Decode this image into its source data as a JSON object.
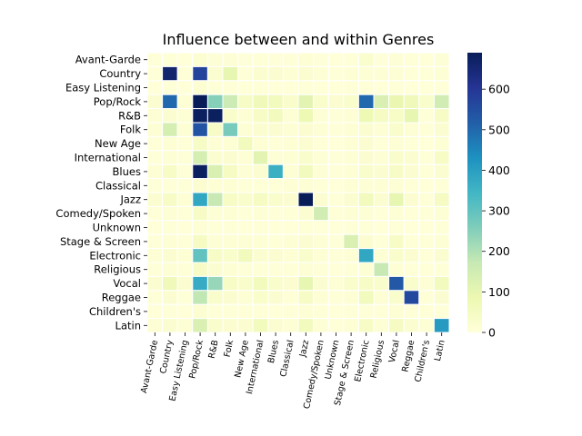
{
  "chart_data": {
    "type": "heatmap",
    "title": "Influence between and within Genres",
    "categories": [
      "Avant-Garde",
      "Country",
      "Easy Listening",
      "Pop/Rock",
      "R&B",
      "Folk",
      "New Age",
      "International",
      "Blues",
      "Classical",
      "Jazz",
      "Comedy/Spoken",
      "Unknown",
      "Stage & Screen",
      "Electronic",
      "Religious",
      "Vocal",
      "Reggae",
      "Children's",
      "Latin"
    ],
    "rows": [
      "Avant-Garde",
      "Country",
      "Easy Listening",
      "Pop/Rock",
      "R&B",
      "Folk",
      "New Age",
      "International",
      "Blues",
      "Classical",
      "Jazz",
      "Comedy/Spoken",
      "Unknown",
      "Stage & Screen",
      "Electronic",
      "Religious",
      "Vocal",
      "Reggae",
      "Children's",
      "Latin"
    ],
    "values": [
      [
        5,
        5,
        2,
        15,
        8,
        8,
        3,
        5,
        3,
        3,
        10,
        3,
        2,
        5,
        25,
        3,
        8,
        5,
        2,
        8
      ],
      [
        5,
        660,
        5,
        570,
        20,
        100,
        5,
        20,
        20,
        10,
        20,
        10,
        5,
        10,
        10,
        10,
        10,
        5,
        5,
        10
      ],
      [
        2,
        5,
        2,
        15,
        5,
        5,
        2,
        5,
        2,
        2,
        5,
        2,
        2,
        5,
        5,
        2,
        5,
        2,
        2,
        5
      ],
      [
        20,
        500,
        10,
        690,
        250,
        160,
        40,
        70,
        60,
        30,
        110,
        30,
        20,
        30,
        500,
        130,
        90,
        70,
        30,
        150
      ],
      [
        10,
        20,
        10,
        680,
        680,
        30,
        10,
        40,
        60,
        10,
        80,
        10,
        5,
        10,
        80,
        50,
        40,
        100,
        5,
        40
      ],
      [
        10,
        140,
        10,
        540,
        40,
        270,
        10,
        20,
        20,
        10,
        20,
        10,
        5,
        10,
        20,
        10,
        30,
        10,
        5,
        20
      ],
      [
        5,
        10,
        5,
        40,
        10,
        10,
        60,
        10,
        5,
        10,
        20,
        5,
        2,
        10,
        20,
        5,
        10,
        5,
        2,
        10
      ],
      [
        5,
        10,
        5,
        140,
        20,
        20,
        10,
        110,
        10,
        10,
        30,
        10,
        5,
        10,
        20,
        10,
        30,
        20,
        5,
        40
      ],
      [
        10,
        40,
        5,
        680,
        130,
        50,
        10,
        20,
        360,
        10,
        60,
        10,
        5,
        10,
        30,
        20,
        40,
        20,
        5,
        20
      ],
      [
        5,
        5,
        5,
        20,
        10,
        10,
        5,
        5,
        5,
        10,
        10,
        5,
        2,
        10,
        10,
        10,
        10,
        5,
        2,
        5
      ],
      [
        20,
        40,
        10,
        380,
        170,
        40,
        30,
        50,
        30,
        20,
        690,
        20,
        5,
        20,
        60,
        20,
        100,
        20,
        5,
        50
      ],
      [
        5,
        10,
        5,
        40,
        10,
        10,
        5,
        10,
        5,
        5,
        20,
        150,
        5,
        10,
        10,
        5,
        10,
        5,
        5,
        10
      ],
      [
        2,
        5,
        2,
        10,
        5,
        5,
        2,
        5,
        2,
        2,
        5,
        2,
        2,
        5,
        5,
        2,
        5,
        2,
        2,
        5
      ],
      [
        5,
        10,
        5,
        50,
        10,
        10,
        10,
        10,
        5,
        10,
        20,
        10,
        5,
        130,
        20,
        5,
        40,
        5,
        5,
        10
      ],
      [
        10,
        20,
        10,
        300,
        40,
        30,
        60,
        20,
        20,
        10,
        30,
        10,
        5,
        10,
        380,
        10,
        30,
        20,
        5,
        20
      ],
      [
        5,
        10,
        5,
        40,
        20,
        10,
        5,
        5,
        5,
        5,
        10,
        5,
        2,
        5,
        10,
        170,
        10,
        5,
        2,
        5
      ],
      [
        20,
        70,
        20,
        370,
        230,
        40,
        30,
        60,
        30,
        20,
        100,
        20,
        10,
        30,
        40,
        30,
        530,
        30,
        10,
        60
      ],
      [
        5,
        20,
        5,
        180,
        30,
        20,
        10,
        30,
        20,
        5,
        40,
        10,
        5,
        10,
        60,
        10,
        30,
        560,
        5,
        20
      ],
      [
        2,
        5,
        2,
        15,
        5,
        5,
        5,
        5,
        2,
        5,
        10,
        5,
        2,
        5,
        5,
        5,
        10,
        5,
        5,
        5
      ],
      [
        10,
        20,
        10,
        130,
        30,
        20,
        20,
        60,
        20,
        10,
        60,
        10,
        5,
        10,
        40,
        10,
        50,
        20,
        10,
        410
      ]
    ],
    "vmin": 0,
    "vmax": 690,
    "colorbar_ticks": [
      0,
      100,
      200,
      300,
      400,
      500,
      600
    ],
    "colormap": "YlGnBu",
    "colormap_stops": [
      "#ffffd9",
      "#edf8b1",
      "#c7e9b4",
      "#7fcdbb",
      "#41b6c4",
      "#1d91c0",
      "#225ea8",
      "#253494",
      "#081d58"
    ],
    "cell_border_color": "#ffffff",
    "xlabel": "",
    "ylabel": ""
  }
}
